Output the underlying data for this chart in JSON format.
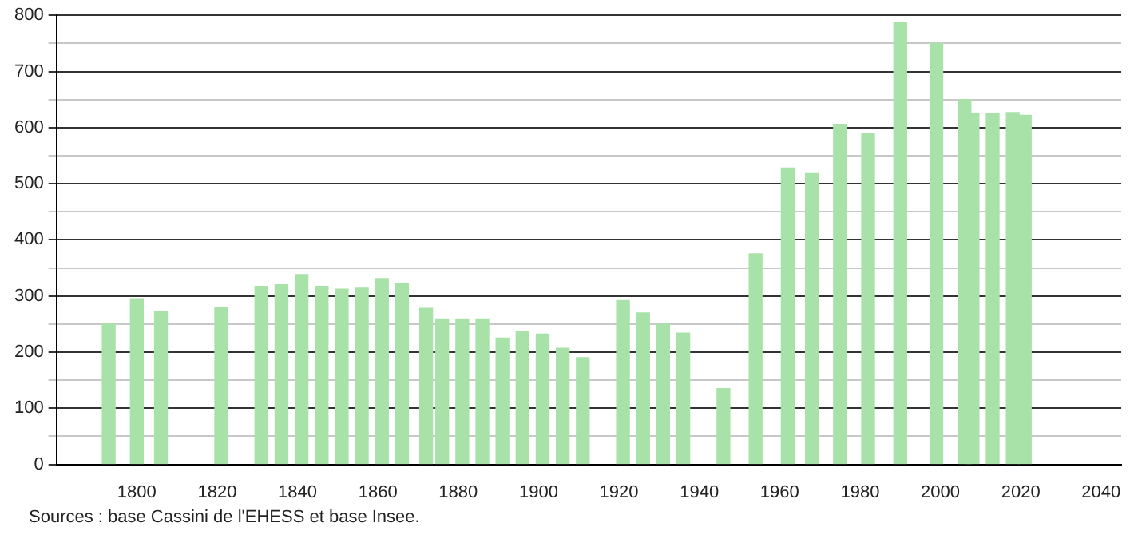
{
  "chart_data": {
    "type": "bar",
    "x": [
      1793,
      1800,
      1806,
      1821,
      1831,
      1836,
      1841,
      1846,
      1851,
      1856,
      1861,
      1866,
      1872,
      1876,
      1881,
      1886,
      1891,
      1896,
      1901,
      1906,
      1911,
      1921,
      1926,
      1931,
      1936,
      1946,
      1954,
      1962,
      1968,
      1975,
      1982,
      1990,
      1999,
      2006,
      2008,
      2013,
      2018,
      2021
    ],
    "values": [
      250,
      295,
      272,
      280,
      317,
      320,
      338,
      317,
      312,
      314,
      331,
      322,
      278,
      259,
      259,
      259,
      225,
      236,
      232,
      207,
      190,
      292,
      270,
      250,
      234,
      135,
      375,
      528,
      518,
      606,
      590,
      787,
      750,
      650,
      625,
      625,
      627,
      622
    ],
    "color": "#a8e2a8",
    "xlim": [
      1780,
      2045
    ],
    "xticks": [
      1800,
      1820,
      1840,
      1860,
      1880,
      1900,
      1920,
      1940,
      1960,
      1980,
      2000,
      2020,
      2040
    ],
    "ylim": [
      0,
      800
    ],
    "yticks": [
      0,
      {
        "value": 50,
        "label": null
      },
      100,
      {
        "value": 150,
        "label": null
      },
      200,
      {
        "value": 250,
        "label": null
      },
      300,
      {
        "value": 350,
        "label": null
      },
      400,
      {
        "value": 450,
        "label": null
      },
      500,
      {
        "value": 550,
        "label": null
      },
      600,
      {
        "value": 650,
        "label": null
      },
      700,
      {
        "value": 750,
        "label": null
      },
      800
    ],
    "grid": "y",
    "legend": false,
    "annotations": [
      "Sources : base Cassini de l'EHESS et base Insee."
    ]
  }
}
